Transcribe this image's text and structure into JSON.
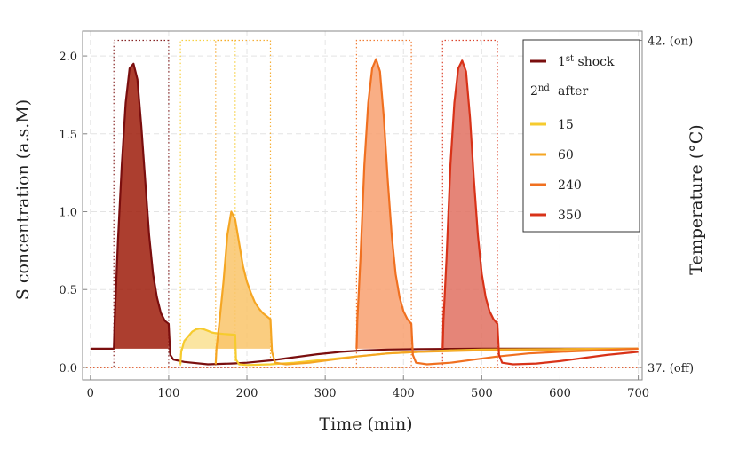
{
  "chart_data": {
    "type": "line",
    "xlabel": "Time (min)",
    "ylabel": "S concentration (a.s.M)",
    "y2label": "Temperature (°C)",
    "xlim": [
      -10,
      705
    ],
    "ylim": [
      -0.08,
      2.16
    ],
    "xticks": [
      0,
      100,
      200,
      300,
      400,
      500,
      600,
      700
    ],
    "yticks": [
      0.0,
      0.5,
      1.0,
      1.5,
      2.0
    ],
    "xtick_labels": [
      "0",
      "100",
      "200",
      "300",
      "400",
      "500",
      "600",
      "700"
    ],
    "ytick_labels": [
      "0.0",
      "0.5",
      "1.0",
      "1.5",
      "2.0"
    ],
    "y2ticks": [
      {
        "label": "42. (on)",
        "value": 2.1
      },
      {
        "label": "37. (off)",
        "value": 0.0
      }
    ],
    "grid": true,
    "legend_position": "top-right",
    "legend": {
      "first_base": "1",
      "first_sup": "st",
      "first_rest": " shock",
      "second_base": "2",
      "second_sup": "nd",
      "second_rest": "after"
    },
    "series": [
      {
        "name": "1st shock",
        "color": "#7a0e0e",
        "fill": "#9e1c0a",
        "baseline": 0.12,
        "fill_range": [
          30,
          100
        ],
        "heat_pulse": [
          30,
          100
        ],
        "points": [
          [
            0,
            0.12
          ],
          [
            30,
            0.12
          ],
          [
            31,
            0.3
          ],
          [
            35,
            0.8
          ],
          [
            40,
            1.3
          ],
          [
            45,
            1.7
          ],
          [
            50,
            1.92
          ],
          [
            55,
            1.95
          ],
          [
            60,
            1.85
          ],
          [
            65,
            1.55
          ],
          [
            70,
            1.2
          ],
          [
            75,
            0.85
          ],
          [
            80,
            0.6
          ],
          [
            85,
            0.45
          ],
          [
            90,
            0.35
          ],
          [
            95,
            0.3
          ],
          [
            100,
            0.28
          ],
          [
            102,
            0.08
          ],
          [
            106,
            0.05
          ],
          [
            120,
            0.035
          ],
          [
            150,
            0.02
          ],
          [
            180,
            0.025
          ],
          [
            200,
            0.03
          ],
          [
            230,
            0.045
          ],
          [
            260,
            0.065
          ],
          [
            290,
            0.085
          ],
          [
            320,
            0.1
          ],
          [
            350,
            0.11
          ],
          [
            380,
            0.115
          ],
          [
            420,
            0.118
          ],
          [
            500,
            0.12
          ],
          [
            600,
            0.12
          ],
          [
            700,
            0.12
          ]
        ]
      },
      {
        "name": "15",
        "color": "#f6cb2e",
        "fill": "#fae190",
        "baseline": 0.12,
        "fill_range": [
          115,
          185
        ],
        "heat_pulse": [
          115,
          185
        ],
        "points": [
          [
            115,
            0.02
          ],
          [
            116,
            0.1
          ],
          [
            120,
            0.17
          ],
          [
            125,
            0.2
          ],
          [
            130,
            0.23
          ],
          [
            135,
            0.245
          ],
          [
            140,
            0.25
          ],
          [
            145,
            0.245
          ],
          [
            150,
            0.235
          ],
          [
            155,
            0.225
          ],
          [
            160,
            0.22
          ],
          [
            170,
            0.215
          ],
          [
            185,
            0.21
          ],
          [
            186,
            0.05
          ],
          [
            190,
            0.02
          ],
          [
            200,
            0.015
          ],
          [
            230,
            0.02
          ],
          [
            260,
            0.03
          ],
          [
            300,
            0.05
          ],
          [
            340,
            0.07
          ],
          [
            380,
            0.09
          ],
          [
            420,
            0.1
          ],
          [
            460,
            0.11
          ],
          [
            500,
            0.115
          ],
          [
            600,
            0.118
          ],
          [
            700,
            0.12
          ]
        ]
      },
      {
        "name": "60",
        "color": "#f5a623",
        "fill": "#f9c46a",
        "baseline": 0.12,
        "fill_range": [
          160,
          230
        ],
        "heat_pulse": [
          160,
          230
        ],
        "points": [
          [
            160,
            0.02
          ],
          [
            161,
            0.12
          ],
          [
            165,
            0.3
          ],
          [
            170,
            0.55
          ],
          [
            175,
            0.85
          ],
          [
            180,
            1.0
          ],
          [
            185,
            0.95
          ],
          [
            190,
            0.8
          ],
          [
            195,
            0.65
          ],
          [
            200,
            0.55
          ],
          [
            205,
            0.48
          ],
          [
            210,
            0.42
          ],
          [
            215,
            0.38
          ],
          [
            220,
            0.35
          ],
          [
            225,
            0.33
          ],
          [
            230,
            0.31
          ],
          [
            232,
            0.1
          ],
          [
            236,
            0.03
          ],
          [
            250,
            0.02
          ],
          [
            280,
            0.03
          ],
          [
            310,
            0.05
          ],
          [
            340,
            0.07
          ],
          [
            380,
            0.09
          ],
          [
            420,
            0.1
          ],
          [
            500,
            0.11
          ],
          [
            600,
            0.115
          ],
          [
            700,
            0.12
          ]
        ]
      },
      {
        "name": "240",
        "color": "#f07020",
        "fill": "#f8a070",
        "baseline": 0.12,
        "fill_range": [
          340,
          410
        ],
        "heat_pulse": [
          340,
          410
        ],
        "points": [
          [
            340,
            0.12
          ],
          [
            341,
            0.3
          ],
          [
            345,
            0.7
          ],
          [
            350,
            1.3
          ],
          [
            355,
            1.7
          ],
          [
            360,
            1.92
          ],
          [
            365,
            1.98
          ],
          [
            370,
            1.9
          ],
          [
            375,
            1.6
          ],
          [
            380,
            1.2
          ],
          [
            385,
            0.85
          ],
          [
            390,
            0.6
          ],
          [
            395,
            0.45
          ],
          [
            400,
            0.36
          ],
          [
            405,
            0.31
          ],
          [
            410,
            0.28
          ],
          [
            412,
            0.08
          ],
          [
            416,
            0.03
          ],
          [
            430,
            0.02
          ],
          [
            460,
            0.03
          ],
          [
            490,
            0.05
          ],
          [
            520,
            0.07
          ],
          [
            560,
            0.09
          ],
          [
            600,
            0.1
          ],
          [
            650,
            0.11
          ],
          [
            700,
            0.12
          ]
        ]
      },
      {
        "name": "350",
        "color": "#d83218",
        "fill": "#e07060",
        "baseline": 0.12,
        "fill_range": [
          450,
          520
        ],
        "heat_pulse": [
          450,
          520
        ],
        "points": [
          [
            450,
            0.12
          ],
          [
            451,
            0.3
          ],
          [
            455,
            0.7
          ],
          [
            460,
            1.3
          ],
          [
            465,
            1.7
          ],
          [
            470,
            1.92
          ],
          [
            475,
            1.97
          ],
          [
            480,
            1.9
          ],
          [
            485,
            1.6
          ],
          [
            490,
            1.2
          ],
          [
            495,
            0.85
          ],
          [
            500,
            0.6
          ],
          [
            505,
            0.45
          ],
          [
            510,
            0.36
          ],
          [
            515,
            0.31
          ],
          [
            520,
            0.28
          ],
          [
            522,
            0.08
          ],
          [
            526,
            0.03
          ],
          [
            540,
            0.02
          ],
          [
            570,
            0.025
          ],
          [
            600,
            0.04
          ],
          [
            630,
            0.06
          ],
          [
            660,
            0.08
          ],
          [
            700,
            0.1
          ]
        ]
      }
    ]
  }
}
